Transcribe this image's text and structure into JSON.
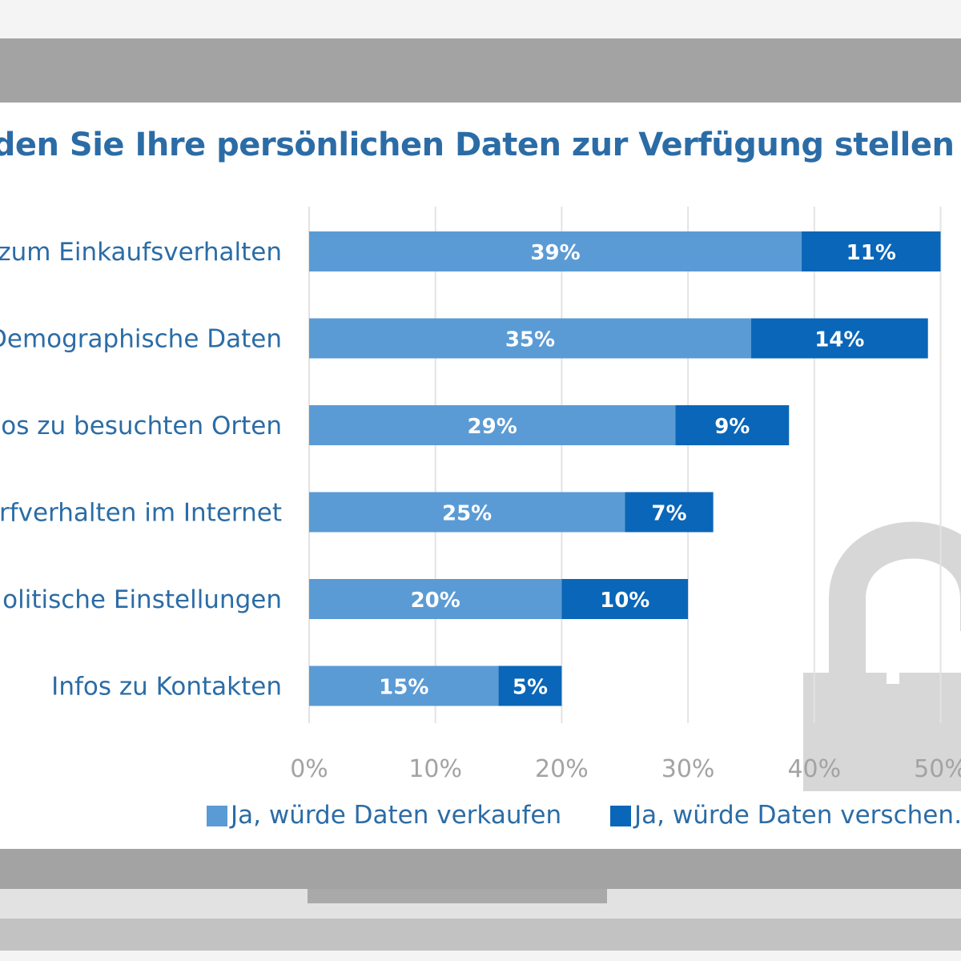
{
  "colors": {
    "series_verkaufen": "#5b9bd5",
    "series_verschenken": "#0a66b8",
    "bezel": "#a3a3a3",
    "gridline": "#e3e3e3",
    "lock": "#d7d7d7"
  },
  "icons": {
    "lock": "open-padlock-icon"
  },
  "chart_data": {
    "type": "bar",
    "orientation": "horizontal",
    "stacked": true,
    "title": "…rden Sie Ihre persönlichen Daten zur Verfügung stellen",
    "categories": [
      "…zum Einkaufsverhalten",
      "Demographische Daten",
      "…os zu besuchten Orten",
      "…rfverhalten im Internet",
      "…olitische Einstellungen",
      "Infos zu Kontakten"
    ],
    "series": [
      {
        "name": "Ja, würde Daten verkaufen",
        "values": [
          39,
          35,
          29,
          25,
          20,
          15
        ],
        "labels": [
          "39%",
          "35%",
          "29%",
          "25%",
          "20%",
          "15%"
        ]
      },
      {
        "name": "Ja, würde Daten verschen…",
        "values": [
          11,
          14,
          9,
          7,
          10,
          5
        ],
        "labels": [
          "11%",
          "14%",
          "9%",
          "7%",
          "10%",
          "5%"
        ]
      }
    ],
    "xlim": [
      0,
      50
    ],
    "xticks": [
      "0%",
      "10%",
      "20%",
      "30%",
      "40%",
      "50%"
    ],
    "grid": true,
    "legend_position": "bottom"
  }
}
